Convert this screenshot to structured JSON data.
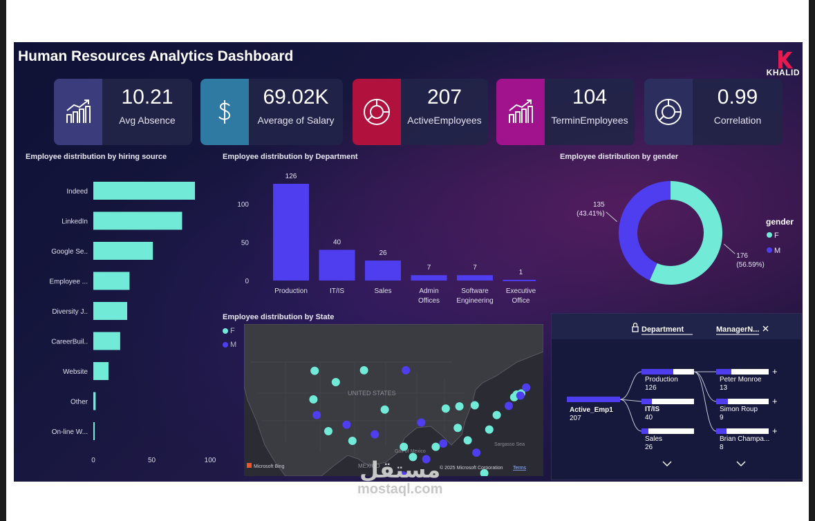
{
  "dashboard": {
    "title": "Human Resources Analytics Dashboard",
    "brand": "KHALID"
  },
  "kpis": [
    {
      "value": "10.21",
      "label": "Avg Absence",
      "icon": "bar-chart-trend-icon",
      "color": "#3a3c7c"
    },
    {
      "value": "69.02K",
      "label": "Average of Salary",
      "icon": "dollar-icon",
      "color": "#2f7aa3"
    },
    {
      "value": "207",
      "label": "ActiveEmployees",
      "icon": "donut-icon",
      "color": "#b0123d"
    },
    {
      "value": "104",
      "label": "TerminEmployees",
      "icon": "bar-chart-trend-icon",
      "color": "#a0138c"
    },
    {
      "value": "0.99",
      "label": "Correlation",
      "icon": "donut-icon",
      "color": "#2c2f5e"
    }
  ],
  "chart_data": [
    {
      "type": "bar",
      "orientation": "horizontal",
      "title": "Employee distribution by hiring source",
      "categories": [
        "Indeed",
        "LinkedIn",
        "Google Se..",
        "Employee ...",
        "Diversity J..",
        "CareerBuil..",
        "Website",
        "Other",
        "On-line W..."
      ],
      "values": [
        87,
        76,
        51,
        31,
        29,
        23,
        13,
        2,
        1
      ],
      "xticks": [
        "0",
        "50",
        "100"
      ],
      "xlim": [
        0,
        100
      ],
      "color": "#72ead8"
    },
    {
      "type": "bar",
      "title": "Employee distribution by Department",
      "categories": [
        [
          "Production"
        ],
        [
          "IT/IS"
        ],
        [
          "Sales"
        ],
        [
          "Admin",
          "Offices"
        ],
        [
          "Software",
          "Engineering"
        ],
        [
          "Executive",
          "Office"
        ]
      ],
      "values": [
        126,
        40,
        26,
        7,
        7,
        1
      ],
      "labels": [
        "126",
        "40",
        "26",
        "7",
        "7",
        "1"
      ],
      "yticks": [
        "0",
        "50",
        "100"
      ],
      "ylim": [
        0,
        126
      ],
      "color": "#4e3ef0"
    },
    {
      "type": "pie",
      "title": "Employee distribution by gender",
      "legend_title": "gender",
      "slices": [
        {
          "name": "F",
          "value": 176,
          "label": "176",
          "pct": "(56.59%)",
          "color": "#72ead8"
        },
        {
          "name": "M",
          "value": 135,
          "label": "135",
          "pct": "(43.41%)",
          "color": "#4e3ef0"
        }
      ]
    },
    {
      "type": "scatter",
      "title": "Employee distribution by State",
      "legend": [
        {
          "name": "F",
          "color": "#72ead8"
        },
        {
          "name": "M",
          "color": "#4e3ef0"
        }
      ],
      "points_F": [
        [
          -121.3,
          46.6
        ],
        [
          -121.6,
          41.3
        ],
        [
          -116.2,
          44.5
        ],
        [
          -109.4,
          46.7
        ],
        [
          -104.4,
          39.4
        ],
        [
          -118.0,
          35.4
        ],
        [
          -112.2,
          33.6
        ],
        [
          -99.8,
          32.5
        ],
        [
          -89.7,
          39.6
        ],
        [
          -86.4,
          40.0
        ],
        [
          -82.7,
          40.2
        ],
        [
          -84.4,
          33.7
        ],
        [
          -79.2,
          35.7
        ],
        [
          -86.8,
          36.0
        ],
        [
          -80.4,
          27.6
        ],
        [
          -92.1,
          32.5
        ],
        [
          -97.6,
          30.6
        ],
        [
          -77.4,
          38.4
        ],
        [
          -73.2,
          41.7
        ],
        [
          -71.5,
          42.4
        ],
        [
          -72.6,
          42.2
        ]
      ],
      "points_M": [
        [
          -99.3,
          46.7
        ],
        [
          -120.8,
          38.4
        ],
        [
          -113.6,
          36.6
        ],
        [
          -106.8,
          34.8
        ],
        [
          -95.6,
          37.0
        ],
        [
          -90.3,
          33.1
        ],
        [
          -82.3,
          31.4
        ],
        [
          -74.5,
          40.1
        ],
        [
          -70.3,
          43.5
        ],
        [
          -71.7,
          42.0
        ],
        [
          -94.4,
          30.2
        ],
        [
          -100.0,
          27.2
        ]
      ],
      "labels": {
        "country": "UNITED STATES",
        "gulf": "Gulf of Mexico",
        "mexico": "MEXICO",
        "sea": "Sargasso Sea",
        "bing": "Microsoft Bing",
        "copyright": "© 2025 Microsoft Corporation",
        "terms": "Terms"
      }
    }
  ],
  "decomp": {
    "header_1": "Department",
    "header_2": "ManagerN...",
    "root": {
      "name": "Active_Emp1",
      "value": "207"
    },
    "depts": [
      {
        "name": "Production",
        "value": "126"
      },
      {
        "name": "IT/IS",
        "value": "40"
      },
      {
        "name": "Sales",
        "value": "26"
      }
    ],
    "managers": [
      {
        "name": "Peter Monroe",
        "value": "13"
      },
      {
        "name": "Simon Roup",
        "value": "9"
      },
      {
        "name": "Brian Champa...",
        "value": "8"
      }
    ]
  },
  "watermark": {
    "arabic": "مستقل",
    "latin": "mostaql.com"
  }
}
